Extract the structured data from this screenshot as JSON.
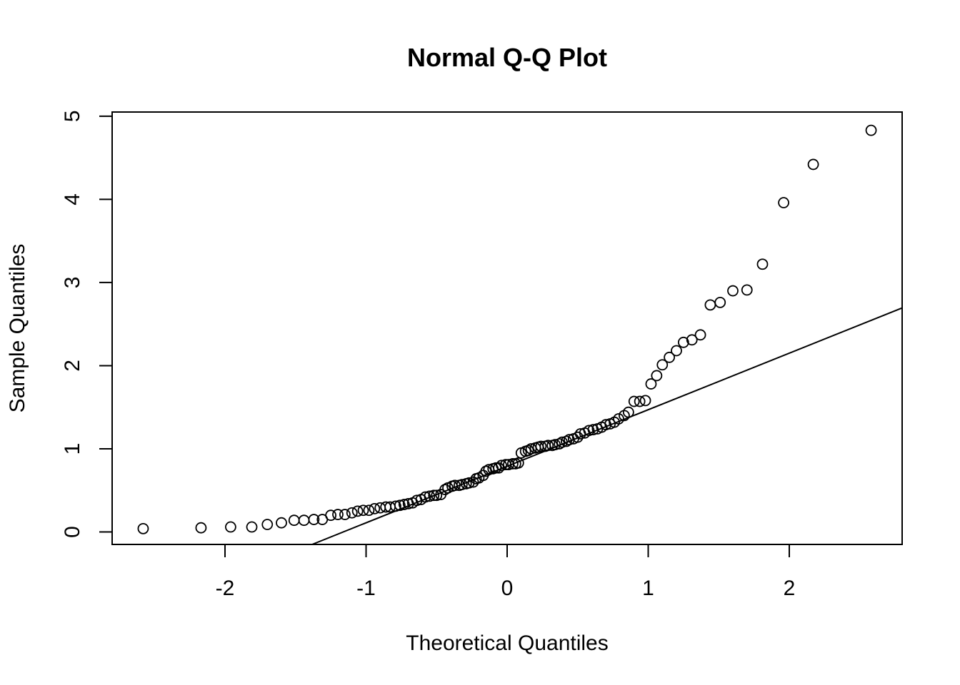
{
  "chart_data": {
    "type": "scatter",
    "title": "Normal Q-Q Plot",
    "xlabel": "Theoretical Quantiles",
    "ylabel": "Sample Quantiles",
    "xlim": [
      -2.8,
      2.8
    ],
    "ylim": [
      -0.15,
      5.05
    ],
    "xticks": [
      -2,
      -1,
      0,
      1,
      2
    ],
    "yticks": [
      0,
      1,
      2,
      3,
      4,
      5
    ],
    "xtick_labels": [
      "-2",
      "-1",
      "0",
      "1",
      "2"
    ],
    "ytick_labels": [
      "0",
      "1",
      "2",
      "3",
      "4",
      "5"
    ],
    "grid": false,
    "legend": "none",
    "reference_line": {
      "intercept": 0.79,
      "slope": 0.68
    },
    "points": [
      [
        -2.58,
        0.04
      ],
      [
        -2.17,
        0.05
      ],
      [
        -1.96,
        0.06
      ],
      [
        -1.81,
        0.06
      ],
      [
        -1.7,
        0.09
      ],
      [
        -1.6,
        0.11
      ],
      [
        -1.51,
        0.14
      ],
      [
        -1.44,
        0.14
      ],
      [
        -1.37,
        0.15
      ],
      [
        -1.31,
        0.15
      ],
      [
        -1.25,
        0.2
      ],
      [
        -1.2,
        0.21
      ],
      [
        -1.15,
        0.21
      ],
      [
        -1.1,
        0.23
      ],
      [
        -1.06,
        0.25
      ],
      [
        -1.02,
        0.26
      ],
      [
        -0.98,
        0.26
      ],
      [
        -0.94,
        0.28
      ],
      [
        -0.9,
        0.29
      ],
      [
        -0.86,
        0.3
      ],
      [
        -0.83,
        0.3
      ],
      [
        -0.79,
        0.31
      ],
      [
        -0.76,
        0.32
      ],
      [
        -0.73,
        0.33
      ],
      [
        -0.7,
        0.34
      ],
      [
        -0.67,
        0.35
      ],
      [
        -0.64,
        0.38
      ],
      [
        -0.61,
        0.39
      ],
      [
        -0.58,
        0.42
      ],
      [
        -0.55,
        0.43
      ],
      [
        -0.52,
        0.44
      ],
      [
        -0.5,
        0.44
      ],
      [
        -0.47,
        0.45
      ],
      [
        -0.44,
        0.51
      ],
      [
        -0.42,
        0.53
      ],
      [
        -0.39,
        0.55
      ],
      [
        -0.37,
        0.56
      ],
      [
        -0.34,
        0.56
      ],
      [
        -0.32,
        0.57
      ],
      [
        -0.29,
        0.58
      ],
      [
        -0.27,
        0.59
      ],
      [
        -0.24,
        0.6
      ],
      [
        -0.22,
        0.64
      ],
      [
        -0.2,
        0.65
      ],
      [
        -0.17,
        0.68
      ],
      [
        -0.15,
        0.73
      ],
      [
        -0.13,
        0.75
      ],
      [
        -0.1,
        0.76
      ],
      [
        -0.08,
        0.77
      ],
      [
        -0.06,
        0.77
      ],
      [
        -0.04,
        0.8
      ],
      [
        -0.01,
        0.81
      ],
      [
        0.01,
        0.81
      ],
      [
        0.04,
        0.82
      ],
      [
        0.06,
        0.82
      ],
      [
        0.08,
        0.83
      ],
      [
        0.1,
        0.95
      ],
      [
        0.13,
        0.97
      ],
      [
        0.15,
        0.98
      ],
      [
        0.17,
        1.0
      ],
      [
        0.2,
        1.01
      ],
      [
        0.22,
        1.02
      ],
      [
        0.24,
        1.03
      ],
      [
        0.27,
        1.03
      ],
      [
        0.29,
        1.04
      ],
      [
        0.32,
        1.04
      ],
      [
        0.34,
        1.05
      ],
      [
        0.37,
        1.06
      ],
      [
        0.39,
        1.08
      ],
      [
        0.42,
        1.09
      ],
      [
        0.44,
        1.11
      ],
      [
        0.47,
        1.12
      ],
      [
        0.5,
        1.14
      ],
      [
        0.52,
        1.18
      ],
      [
        0.55,
        1.19
      ],
      [
        0.58,
        1.22
      ],
      [
        0.61,
        1.23
      ],
      [
        0.64,
        1.24
      ],
      [
        0.67,
        1.26
      ],
      [
        0.7,
        1.29
      ],
      [
        0.73,
        1.3
      ],
      [
        0.76,
        1.32
      ],
      [
        0.79,
        1.36
      ],
      [
        0.83,
        1.4
      ],
      [
        0.86,
        1.44
      ],
      [
        0.9,
        1.57
      ],
      [
        0.94,
        1.57
      ],
      [
        0.98,
        1.58
      ],
      [
        1.02,
        1.78
      ],
      [
        1.06,
        1.88
      ],
      [
        1.1,
        2.01
      ],
      [
        1.15,
        2.1
      ],
      [
        1.2,
        2.18
      ],
      [
        1.25,
        2.28
      ],
      [
        1.31,
        2.31
      ],
      [
        1.37,
        2.37
      ],
      [
        1.44,
        2.73
      ],
      [
        1.51,
        2.76
      ],
      [
        1.6,
        2.9
      ],
      [
        1.7,
        2.91
      ],
      [
        1.81,
        3.22
      ],
      [
        1.96,
        3.96
      ],
      [
        2.17,
        4.42
      ],
      [
        2.58,
        4.83
      ]
    ]
  }
}
